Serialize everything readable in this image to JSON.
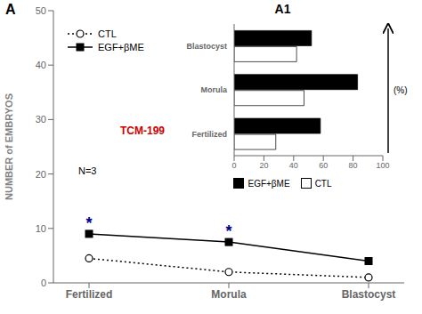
{
  "chart_data": [
    {
      "type": "line",
      "title": "A",
      "categories": [
        "Fertilized",
        "Morula",
        "Blastocyst"
      ],
      "ylabel": "NUMBER of EMBRYOS",
      "ylim": [
        0,
        50
      ],
      "yticks": [
        0,
        10,
        20,
        30,
        40,
        50
      ],
      "grid": false,
      "legend": "upper left",
      "series": [
        {
          "name": "CTL",
          "color": "#000000",
          "marker": "circle",
          "line_style": "dotted",
          "values": [
            4.5,
            2.0,
            1.0
          ]
        },
        {
          "name": "EGF+βME",
          "color": "#000000",
          "marker": "square",
          "line_style": "solid",
          "values": [
            9.0,
            7.5,
            4.0
          ]
        }
      ],
      "annotations": [
        {
          "text": "*",
          "x": "Fertilized",
          "y": 9.0,
          "color": "#00008B"
        },
        {
          "text": "*",
          "x": "Morula",
          "y": 7.5,
          "color": "#00008B"
        },
        {
          "text": "TCM-199",
          "color": "#CC0000"
        },
        {
          "text": "N=3"
        }
      ]
    },
    {
      "type": "bar",
      "orientation": "horizontal",
      "title": "A1",
      "categories": [
        "Fertilized",
        "Morula",
        "Blastocyst"
      ],
      "xlabel": "(%)",
      "xlim": [
        0,
        100
      ],
      "xticks": [
        0,
        20,
        40,
        60,
        80,
        100
      ],
      "grid": false,
      "legend": "lower center",
      "series": [
        {
          "name": "EGF+βME",
          "color": "#000000",
          "values": [
            58,
            83,
            52
          ]
        },
        {
          "name": "CTL",
          "color": "#ffffff",
          "values": [
            28,
            47,
            42
          ]
        }
      ]
    }
  ]
}
